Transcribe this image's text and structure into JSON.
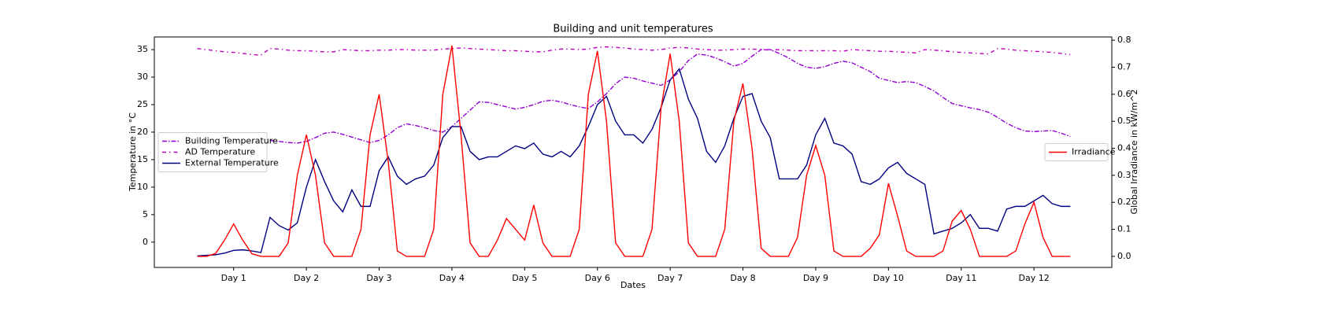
{
  "chart_data": {
    "type": "line",
    "title": "Building and unit temperatures",
    "xlabel": "Dates",
    "ylabel": "Temperature in °C",
    "y2label": "Global Irradiance in kW/m^2",
    "xlim": [
      -0.09,
      13.07
    ],
    "xticks": [
      {
        "value": 1,
        "label": "Day 1"
      },
      {
        "value": 2,
        "label": "Day 2"
      },
      {
        "value": 3,
        "label": "Day 3"
      },
      {
        "value": 4,
        "label": "Day 4"
      },
      {
        "value": 5,
        "label": "Day 5"
      },
      {
        "value": 6,
        "label": "Day 6"
      },
      {
        "value": 7,
        "label": "Day 7"
      },
      {
        "value": 8,
        "label": "Day 8"
      },
      {
        "value": 9,
        "label": "Day 9"
      },
      {
        "value": 10,
        "label": "Day 10"
      },
      {
        "value": 11,
        "label": "Day 11"
      },
      {
        "value": 12,
        "label": "Day 12"
      }
    ],
    "ylim": [
      -4.6,
      37.3
    ],
    "yticks": [
      0,
      5,
      10,
      15,
      20,
      25,
      30,
      35
    ],
    "y2lim": [
      -0.041,
      0.812
    ],
    "y2ticks": [
      {
        "value": 0,
        "label": "0.0"
      },
      0.1,
      0.2,
      0.3,
      0.4,
      0.5,
      0.6,
      0.7,
      0.8
    ],
    "legend": "center left",
    "legend2": "center right",
    "x": [
      0.5,
      0.625,
      0.75,
      0.875,
      1,
      1.125,
      1.25,
      1.375,
      1.5,
      1.625,
      1.75,
      1.875,
      2,
      2.125,
      2.25,
      2.375,
      2.5,
      2.625,
      2.75,
      2.875,
      3,
      3.125,
      3.25,
      3.375,
      3.5,
      3.625,
      3.75,
      3.875,
      4,
      4.125,
      4.25,
      4.375,
      4.5,
      4.625,
      4.75,
      4.875,
      5,
      5.125,
      5.25,
      5.375,
      5.5,
      5.625,
      5.75,
      5.875,
      6,
      6.125,
      6.25,
      6.375,
      6.5,
      6.625,
      6.75,
      6.875,
      7,
      7.125,
      7.25,
      7.375,
      7.5,
      7.625,
      7.75,
      7.875,
      8,
      8.125,
      8.25,
      8.375,
      8.5,
      8.625,
      8.75,
      8.875,
      9,
      9.125,
      9.25,
      9.375,
      9.5,
      9.625,
      9.75,
      9.875,
      10,
      10.125,
      10.25,
      10.375,
      10.5,
      10.625,
      10.75,
      10.875,
      11,
      11.125,
      11.25,
      11.375,
      11.5,
      11.625,
      11.75,
      11.875,
      12,
      12.125,
      12.25,
      12.375,
      12.5
    ],
    "series": [
      {
        "name": "Building Temperature",
        "color": "#9400d3",
        "dash": "6 2 1.5 2",
        "axis": "y",
        "legend": 1,
        "values": [
          null,
          null,
          null,
          null,
          null,
          null,
          null,
          null,
          18.5,
          18.3,
          18.1,
          18.0,
          18.3,
          19.0,
          19.8,
          20.0,
          19.6,
          19.1,
          18.6,
          18.1,
          18.5,
          19.5,
          20.8,
          21.5,
          21.2,
          20.8,
          20.3,
          20.0,
          21.0,
          22.5,
          24.0,
          25.5,
          25.4,
          25.0,
          24.6,
          24.2,
          24.5,
          25.0,
          25.6,
          25.8,
          25.5,
          25.0,
          24.6,
          24.3,
          25.5,
          27.0,
          28.8,
          30.0,
          29.8,
          29.3,
          28.9,
          28.5,
          29.5,
          31.0,
          33.0,
          34.2,
          34.0,
          33.5,
          32.8,
          32.0,
          32.5,
          33.8,
          35.0,
          35.0,
          34.3,
          33.5,
          32.5,
          31.8,
          31.6,
          31.9,
          32.5,
          32.9,
          32.6,
          31.8,
          31.0,
          29.8,
          29.4,
          29.0,
          29.2,
          29.0,
          28.3,
          27.5,
          26.3,
          25.2,
          24.8,
          24.4,
          24.1,
          23.6,
          22.7,
          21.6,
          20.8,
          20.2,
          20.1,
          20.2,
          20.3,
          19.8,
          19.2
        ]
      },
      {
        "name": "AD Temperature",
        "color": "#c000c0",
        "dash": "5 4 1.5 4",
        "axis": "y",
        "legend": 1,
        "values": [
          35.2,
          35.0,
          34.8,
          34.6,
          34.5,
          34.3,
          34.1,
          34.0,
          35.2,
          35.1,
          34.9,
          34.8,
          34.8,
          34.7,
          34.6,
          34.6,
          35.0,
          34.9,
          34.8,
          34.8,
          34.9,
          34.9,
          35.0,
          35.0,
          34.9,
          34.9,
          34.9,
          35.1,
          35.2,
          35.3,
          35.2,
          35.1,
          35.0,
          34.9,
          34.8,
          34.8,
          34.7,
          34.6,
          34.6,
          34.9,
          35.1,
          35.1,
          35.0,
          35.1,
          35.4,
          35.5,
          35.4,
          35.3,
          35.1,
          35.0,
          34.9,
          35.0,
          35.3,
          35.4,
          35.3,
          35.1,
          35.0,
          34.9,
          34.9,
          35.0,
          35.1,
          35.1,
          35.0,
          34.9,
          35.0,
          34.9,
          34.8,
          34.8,
          34.8,
          34.8,
          34.8,
          34.7,
          35.0,
          34.9,
          34.8,
          34.7,
          34.7,
          34.6,
          34.5,
          34.4,
          35.0,
          34.9,
          34.8,
          34.6,
          34.5,
          34.4,
          34.3,
          34.2,
          35.2,
          35.1,
          34.9,
          34.8,
          34.7,
          34.6,
          34.5,
          34.3,
          34.1
        ]
      },
      {
        "name": "External Temperature",
        "color": "#000080",
        "axis": "y",
        "legend": 1,
        "values": [
          -2.5,
          -2.4,
          -2.3,
          -2.0,
          -1.5,
          -1.4,
          -1.6,
          -1.9,
          4.5,
          3.0,
          2.2,
          3.5,
          10.0,
          15.0,
          11.0,
          7.5,
          5.5,
          9.5,
          6.5,
          6.5,
          13.0,
          15.5,
          12.0,
          10.5,
          11.5,
          12.0,
          14.0,
          19.0,
          21.0,
          21.0,
          16.5,
          15.0,
          15.5,
          15.5,
          16.5,
          17.5,
          17.0,
          18.0,
          16.0,
          15.5,
          16.5,
          15.5,
          17.5,
          21.0,
          25.0,
          26.5,
          22.0,
          19.5,
          19.5,
          18.0,
          20.5,
          24.5,
          29.5,
          31.5,
          26.0,
          22.5,
          16.5,
          14.5,
          17.5,
          22.5,
          26.5,
          27.0,
          22.0,
          19.0,
          11.5,
          11.5,
          11.5,
          14.0,
          19.5,
          22.5,
          18.0,
          17.5,
          16.0,
          11.0,
          10.5,
          11.5,
          13.5,
          14.5,
          12.5,
          11.5,
          10.5,
          1.5,
          2.0,
          2.5,
          3.5,
          5.0,
          2.5,
          2.5,
          2.0,
          6.0,
          6.5,
          6.5,
          7.5,
          8.5,
          7.0,
          6.5,
          6.5
        ]
      },
      {
        "name": "Irradiance",
        "color": "#ff0000",
        "axis": "y2",
        "legend": 2,
        "values": [
          0,
          0,
          0.01,
          0.06,
          0.12,
          0.06,
          0.01,
          0,
          0,
          0,
          0.05,
          0.3,
          0.45,
          0.3,
          0.05,
          0,
          0,
          0,
          0.1,
          0.45,
          0.6,
          0.35,
          0.02,
          0,
          0,
          0,
          0.1,
          0.6,
          0.78,
          0.45,
          0.05,
          0,
          0,
          0.06,
          0.14,
          0.1,
          0.06,
          0.19,
          0.05,
          0,
          0,
          0,
          0.1,
          0.6,
          0.76,
          0.5,
          0.05,
          0,
          0,
          0,
          0.1,
          0.55,
          0.75,
          0.5,
          0.05,
          0,
          0,
          0,
          0.1,
          0.5,
          0.64,
          0.4,
          0.03,
          0,
          0,
          0,
          0.07,
          0.3,
          0.41,
          0.3,
          0.02,
          0,
          0,
          0,
          0.03,
          0.08,
          0.27,
          0.15,
          0.02,
          0,
          0,
          0,
          0.02,
          0.13,
          0.17,
          0.1,
          0,
          0,
          0,
          0,
          0.02,
          0.12,
          0.2,
          0.07,
          0,
          0,
          0
        ]
      }
    ]
  }
}
